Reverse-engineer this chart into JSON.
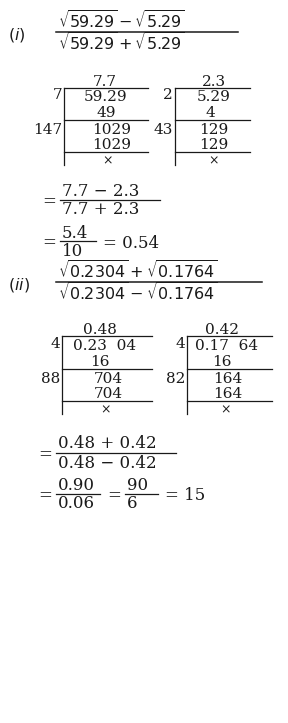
{
  "bg_color": "#ffffff",
  "text_color": "#1a1a1a",
  "fig_width": 2.88,
  "fig_height": 7.23,
  "dpi": 100
}
